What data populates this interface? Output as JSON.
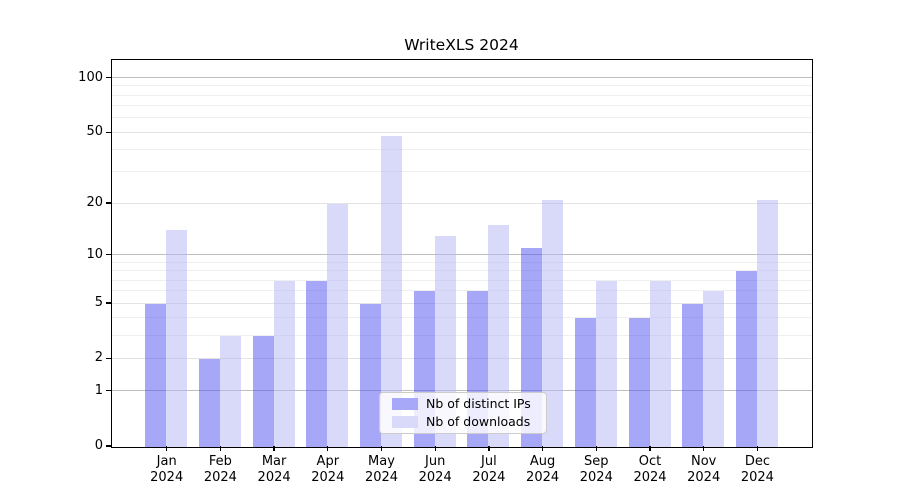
{
  "title": "WriteXLS 2024",
  "chart_data": {
    "type": "bar",
    "title": "WriteXLS 2024",
    "categories": [
      "Jan",
      "Feb",
      "Mar",
      "Apr",
      "May",
      "Jun",
      "Jul",
      "Aug",
      "Sep",
      "Oct",
      "Nov",
      "Dec"
    ],
    "category_year": "2024",
    "series": [
      {
        "name": "Nb of distinct IPs",
        "fill": "rgba(80,80,240,0.5)",
        "color": "#a8a8f8",
        "values": [
          5,
          2,
          3,
          7,
          5,
          6,
          6,
          11,
          4,
          4,
          5,
          8
        ]
      },
      {
        "name": "Nb of downloads",
        "fill": "rgba(180,180,243,0.5)",
        "color": "#d9d9f9",
        "values": [
          14,
          3,
          7,
          20,
          48,
          13,
          15,
          21,
          7,
          7,
          6,
          21
        ]
      }
    ],
    "xlabel": "",
    "ylabel": "",
    "yscale": "log1p",
    "ylim": [
      0,
      125
    ],
    "yticks": [
      0,
      1,
      2,
      5,
      10,
      20,
      50,
      100
    ],
    "minor_yticks": [
      3,
      4,
      6,
      7,
      8,
      9,
      30,
      40,
      60,
      70,
      80,
      90
    ],
    "decade_yticks": [
      1,
      10,
      100
    ],
    "grid": true,
    "legend_position": "lower center",
    "axis_color": "#000000",
    "grid_decade_color": "#bfbfbf",
    "grid_major_color": "#e3e3e3",
    "grid_minor_color": "#efefef"
  }
}
